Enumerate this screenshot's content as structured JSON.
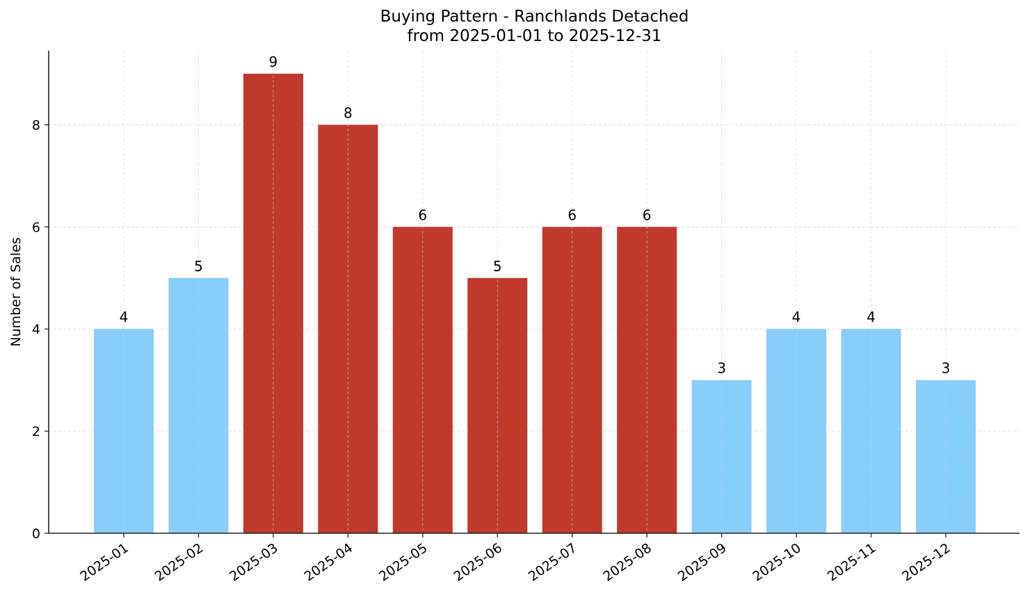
{
  "chart_data": {
    "type": "bar",
    "title": "Buying Pattern - Ranchlands Detached",
    "subtitle": "from 2025-01-01 to 2025-12-31",
    "xlabel": "",
    "ylabel": "Number of Sales",
    "categories": [
      "2025-01",
      "2025-02",
      "2025-03",
      "2025-04",
      "2025-05",
      "2025-06",
      "2025-07",
      "2025-08",
      "2025-09",
      "2025-10",
      "2025-11",
      "2025-12"
    ],
    "values": [
      4,
      5,
      9,
      8,
      6,
      5,
      6,
      6,
      3,
      4,
      4,
      3
    ],
    "bar_colors": [
      "#87CEFA",
      "#87CEFA",
      "#C0392B",
      "#C0392B",
      "#C0392B",
      "#C0392B",
      "#C0392B",
      "#C0392B",
      "#87CEFA",
      "#87CEFA",
      "#87CEFA",
      "#87CEFA"
    ],
    "highlight_color": "#C0392B",
    "base_color": "#87CEFA",
    "yticks": [
      0,
      2,
      4,
      6,
      8
    ],
    "ylim": [
      0,
      9.45
    ],
    "grid": true,
    "data_labels": true,
    "legend": null
  }
}
